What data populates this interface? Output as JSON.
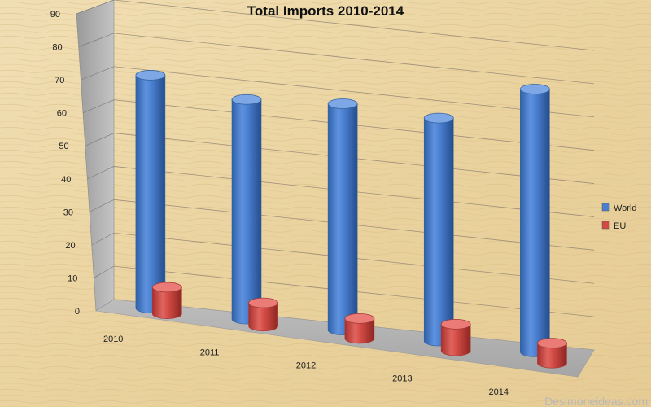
{
  "chart_data": {
    "type": "bar",
    "title": "Total Imports 2010-2014",
    "categories": [
      "2010",
      "2011",
      "2012",
      "2013",
      "2014"
    ],
    "series": [
      {
        "name": "World",
        "values": [
          70,
          66,
          68,
          67,
          79
        ],
        "color": "#4a7fd0"
      },
      {
        "name": "EU",
        "values": [
          8,
          7,
          6,
          8,
          6
        ],
        "color": "#d24a44"
      }
    ],
    "ylim": [
      0,
      90
    ],
    "yticks": [
      0,
      10,
      20,
      30,
      40,
      50,
      60,
      70,
      80,
      90
    ],
    "xlabel": "",
    "ylabel": "",
    "grid": true,
    "legend_position": "right",
    "style": "3d-cylinder"
  },
  "watermark": "Desimoneideas.com"
}
